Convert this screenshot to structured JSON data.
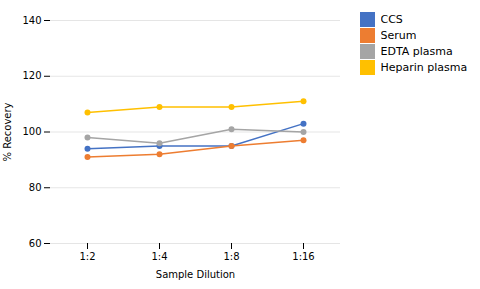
{
  "chart_data": {
    "type": "line",
    "categories": [
      "1:2",
      "1:4",
      "1:8",
      "1:16"
    ],
    "series": [
      {
        "name": "CCS",
        "color": "#4472C4",
        "marker": "circle",
        "values": [
          94,
          95,
          95,
          103
        ]
      },
      {
        "name": "Serum",
        "color": "#ED7D31",
        "marker": "circle",
        "values": [
          91,
          92,
          95,
          97
        ]
      },
      {
        "name": "EDTA plasma",
        "color": "#A5A5A5",
        "marker": "circle",
        "values": [
          98,
          96,
          101,
          100
        ]
      },
      {
        "name": "Heparin plasma",
        "color": "#FFC000",
        "marker": "circle",
        "values": [
          107,
          109,
          109,
          111
        ]
      }
    ],
    "xlabel": "Sample Dilution",
    "ylabel": "% Recovery",
    "ylim": [
      60,
      140
    ],
    "yticks": [
      60,
      80,
      100,
      120,
      140
    ],
    "grid": true,
    "legend": "right"
  }
}
